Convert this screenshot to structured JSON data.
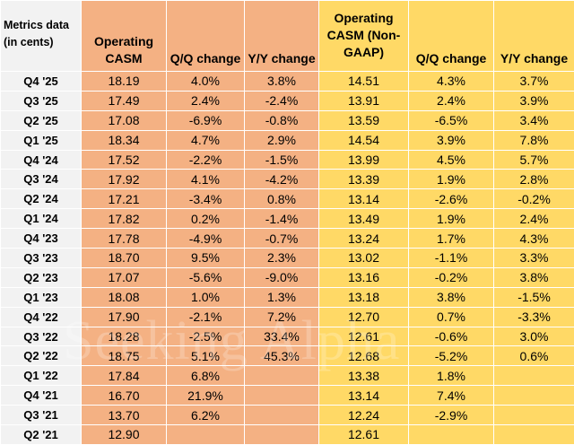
{
  "table": {
    "header": [
      "Metrics data (in cents)",
      "Operating CASM",
      "Q/Q change",
      "Y/Y change",
      "Operating CASM (Non-GAAP)",
      "Q/Q change",
      "Y/Y change"
    ],
    "rows": [
      [
        "Q4 '25",
        "18.19",
        "4.0%",
        "3.8%",
        "14.51",
        "4.3%",
        "3.7%"
      ],
      [
        "Q3 '25",
        "17.49",
        "2.4%",
        "-2.4%",
        "13.91",
        "2.4%",
        "3.9%"
      ],
      [
        "Q2 '25",
        "17.08",
        "-6.9%",
        "-0.8%",
        "13.59",
        "-6.5%",
        "3.4%"
      ],
      [
        "Q1 '25",
        "18.34",
        "4.7%",
        "2.9%",
        "14.54",
        "3.9%",
        "7.8%"
      ],
      [
        "Q4 '24",
        "17.52",
        "-2.2%",
        "-1.5%",
        "13.99",
        "4.5%",
        "5.7%"
      ],
      [
        "Q3 '24",
        "17.92",
        "4.1%",
        "-4.2%",
        "13.39",
        "1.9%",
        "2.8%"
      ],
      [
        "Q2 '24",
        "17.21",
        "-3.4%",
        "0.8%",
        "13.14",
        "-2.6%",
        "-0.2%"
      ],
      [
        "Q1 '24",
        "17.82",
        "0.2%",
        "-1.4%",
        "13.49",
        "1.9%",
        "2.4%"
      ],
      [
        "Q4 '23",
        "17.78",
        "-4.9%",
        "-0.7%",
        "13.24",
        "1.7%",
        "4.3%"
      ],
      [
        "Q3 '23",
        "18.70",
        "9.5%",
        "2.3%",
        "13.02",
        "-1.1%",
        "3.3%"
      ],
      [
        "Q2 '23",
        "17.07",
        "-5.6%",
        "-9.0%",
        "13.16",
        "-0.2%",
        "3.8%"
      ],
      [
        "Q1 '23",
        "18.08",
        "1.0%",
        "1.3%",
        "13.18",
        "3.8%",
        "-1.5%"
      ],
      [
        "Q4 '22",
        "17.90",
        "-2.1%",
        "7.2%",
        "12.70",
        "0.7%",
        "-3.3%"
      ],
      [
        "Q3 '22",
        "18.28",
        "-2.5%",
        "33.4%",
        "12.61",
        "-0.6%",
        "3.0%"
      ],
      [
        "Q2 '22",
        "18.75",
        "5.1%",
        "45.3%",
        "12.68",
        "-5.2%",
        "0.6%"
      ],
      [
        "Q1 '22",
        "17.84",
        "6.8%",
        null,
        "13.38",
        "1.8%",
        null
      ],
      [
        "Q4 '21",
        "16.70",
        "21.9%",
        null,
        "13.14",
        "7.4%",
        null
      ],
      [
        "Q3 '21",
        "13.70",
        "6.2%",
        null,
        "12.24",
        "-2.9%",
        null
      ],
      [
        "Q2 '21",
        "12.90",
        null,
        null,
        "12.61",
        null,
        null
      ]
    ]
  },
  "watermark": "Seeking Alpha"
}
